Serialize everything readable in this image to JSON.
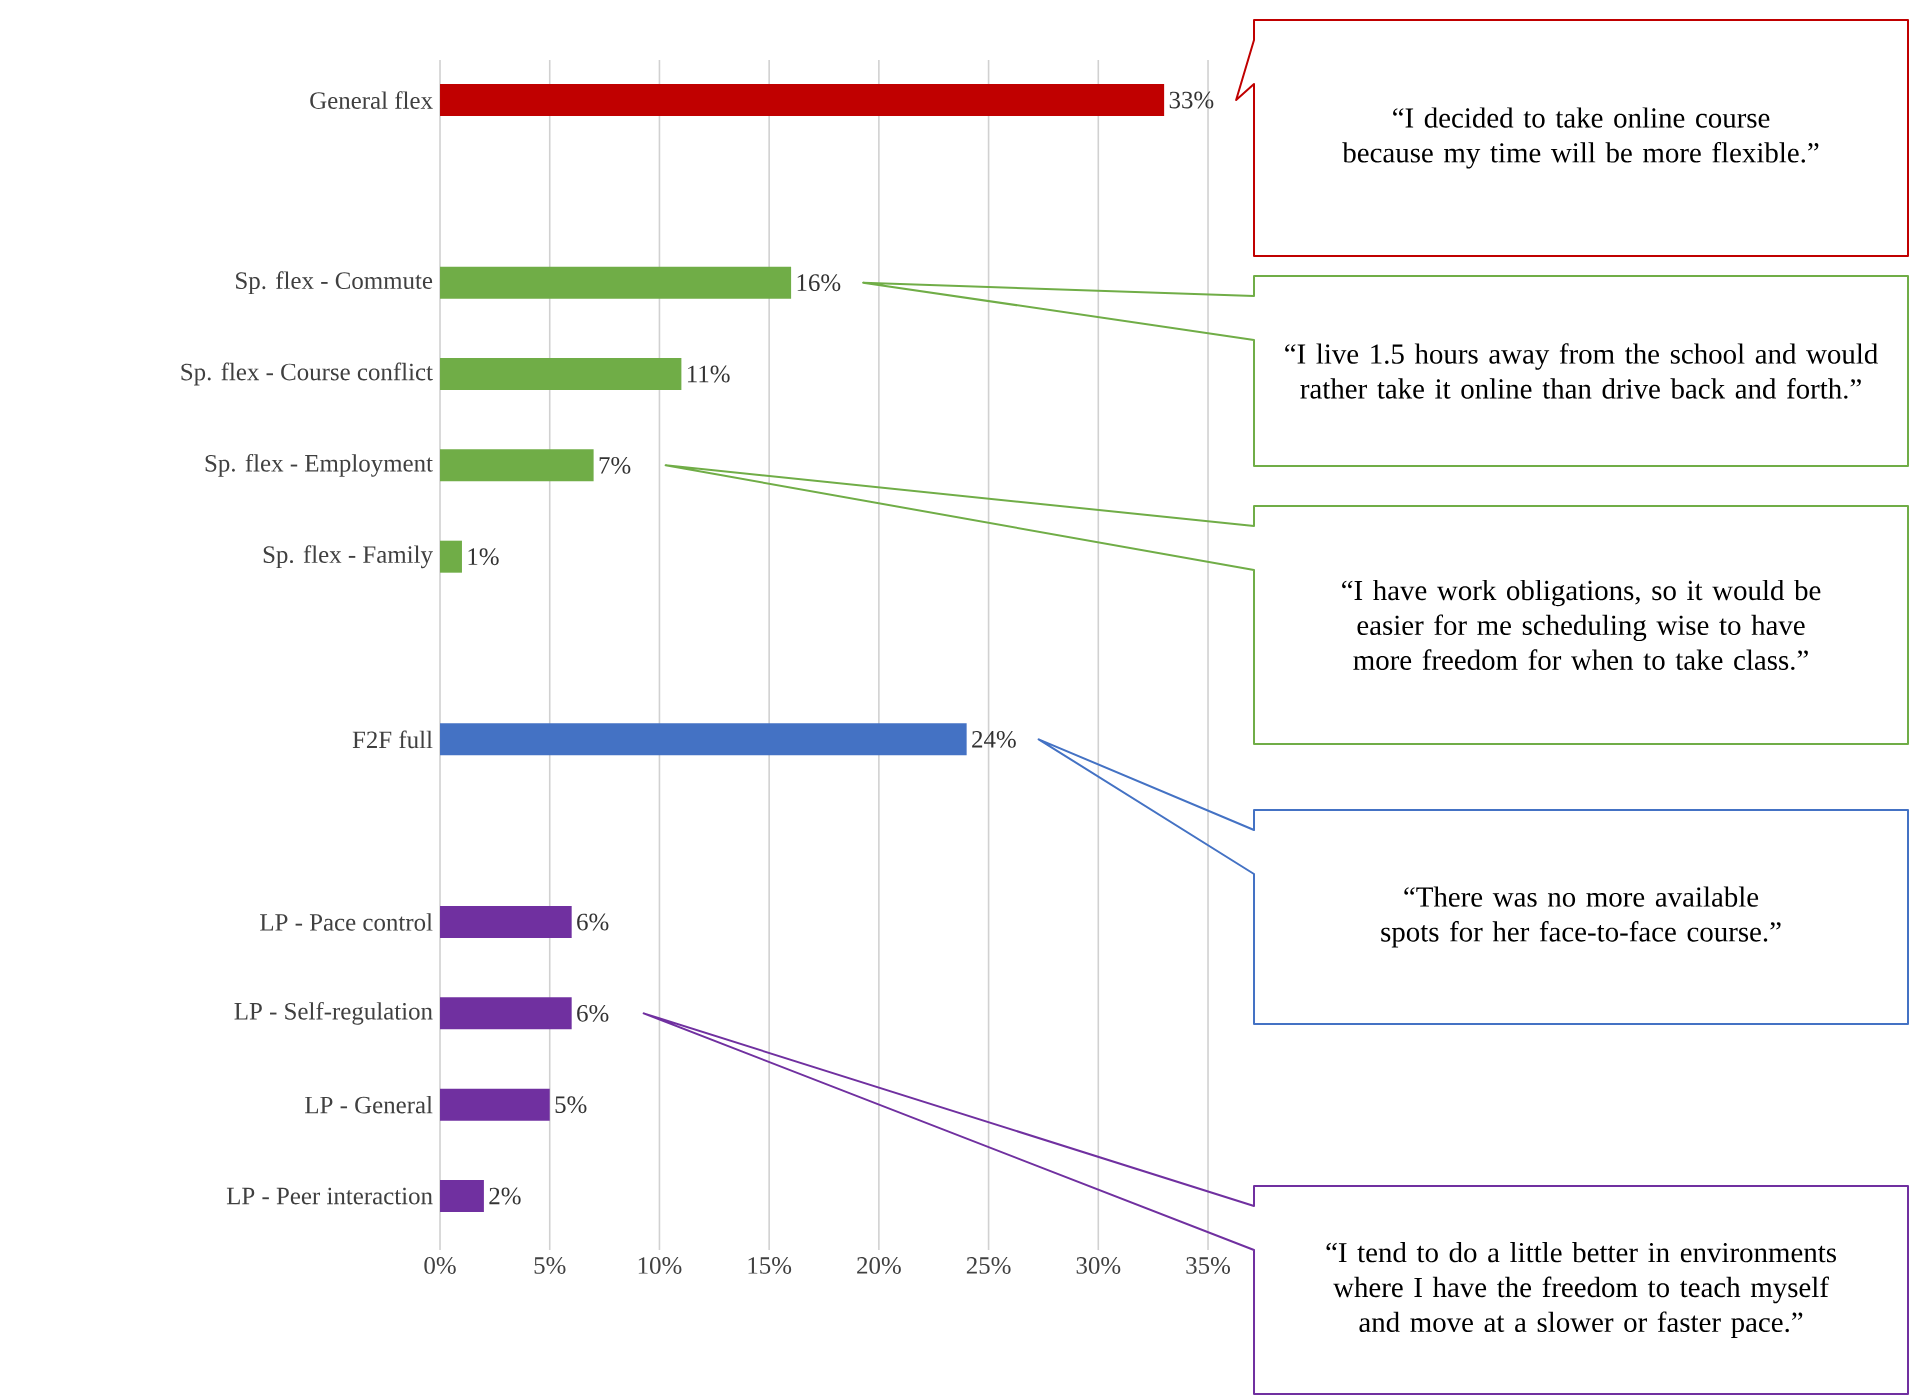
{
  "chart_data": {
    "type": "bar",
    "orientation": "horizontal",
    "categories": [
      "General flex",
      null,
      "Sp. flex - Commute",
      "Sp. flex - Course conflict",
      "Sp. flex - Employment",
      "Sp. flex - Family",
      null,
      "F2F full",
      null,
      "LP - Pace control",
      "LP - Self-regulation",
      "LP - General",
      "LP - Peer interaction"
    ],
    "values": [
      33,
      null,
      16,
      11,
      7,
      1,
      null,
      24,
      null,
      6,
      6,
      5,
      2
    ],
    "value_labels": [
      "33%",
      null,
      "16%",
      "11%",
      "7%",
      "1%",
      null,
      "24%",
      null,
      "6%",
      "6%",
      "5%",
      "2%"
    ],
    "colors": [
      "#c00000",
      "#ffffff",
      "#70ad47",
      "#70ad47",
      "#70ad47",
      "#70ad47",
      "#ffffff",
      "#4472c4",
      "#ffffff",
      "#7030a0",
      "#7030a0",
      "#7030a0",
      "#7030a0"
    ],
    "xlim": [
      0,
      35
    ],
    "xticks": [
      {
        "value": 0,
        "label": "0%"
      },
      {
        "value": 5,
        "label": "5%"
      },
      {
        "value": 10,
        "label": "10%"
      },
      {
        "value": 15,
        "label": "15%"
      },
      {
        "value": 20,
        "label": "20%"
      },
      {
        "value": 25,
        "label": "25%"
      },
      {
        "value": 30,
        "label": "30%"
      },
      {
        "value": 35,
        "label": "35%"
      }
    ],
    "grid": "x",
    "annotations": [
      "“I decided to take online course because my time will be more flexible.”",
      "“I live 1.5 hours away from the school and would rather take it online than drive back and forth.”",
      "“I have work obligations, so it would be easier for me scheduling wise to have more freedom for when to take class.”",
      "“There was no more available spots for her face-to-face course.”",
      "“I tend to do a little better in environments where I have the freedom to teach myself and move at a slower or faster pace.”"
    ]
  }
}
